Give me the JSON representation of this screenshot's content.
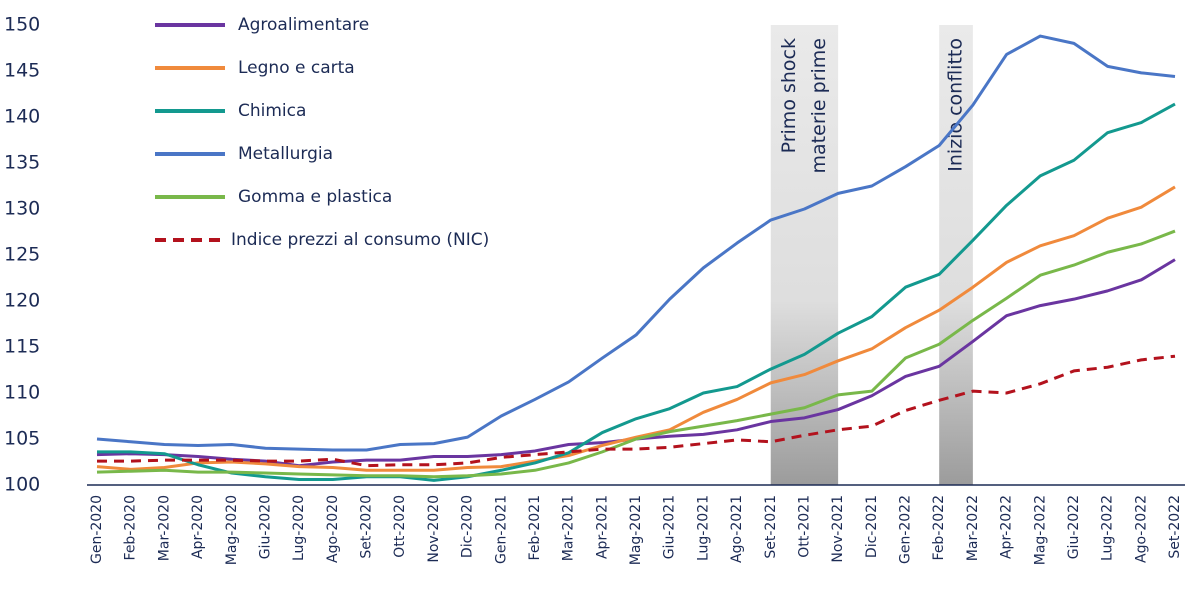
{
  "chart_data": {
    "type": "line",
    "categories": [
      "Gen-2020",
      "Feb-2020",
      "Mar-2020",
      "Apr-2020",
      "Mag-2020",
      "Giu-2020",
      "Lug-2020",
      "Ago-2020",
      "Set-2020",
      "Ott-2020",
      "Nov-2020",
      "Dic-2020",
      "Gen-2021",
      "Feb-2021",
      "Mar-2021",
      "Apr-2021",
      "Mag-2021",
      "Giu-2021",
      "Lug-2021",
      "Ago-2021",
      "Set-2021",
      "Ott-2021",
      "Nov-2021",
      "Dic-2021",
      "Gen-2022",
      "Feb-2022",
      "Mar-2022",
      "Apr-2022",
      "Mag-2022",
      "Giu-2022",
      "Lug-2022",
      "Ago-2022",
      "Set-2022"
    ],
    "series": [
      {
        "name": "Agroalimentare",
        "color": "#6a35a0",
        "values": [
          103.3,
          103.4,
          103.3,
          103.1,
          102.8,
          102.6,
          102.1,
          102.5,
          102.7,
          102.7,
          103.1,
          103.1,
          103.3,
          103.7,
          104.4,
          104.6,
          105.0,
          105.3,
          105.5,
          106.0,
          106.9,
          107.3,
          108.2,
          109.7,
          111.8,
          112.9,
          115.6,
          118.4,
          119.5,
          120.2,
          121.1,
          122.3,
          124.5
        ]
      },
      {
        "name": "Legno e carta",
        "color": "#f08a3c",
        "values": [
          102.0,
          101.7,
          101.9,
          102.4,
          102.5,
          102.3,
          102.0,
          101.9,
          101.6,
          101.6,
          101.6,
          101.9,
          102.0,
          102.6,
          103.2,
          104.3,
          105.2,
          106.0,
          107.9,
          109.3,
          111.1,
          112.0,
          113.5,
          114.8,
          117.1,
          119.0,
          121.5,
          124.2,
          126.0,
          127.1,
          129.0,
          130.2,
          132.4
        ]
      },
      {
        "name": "Chimica",
        "color": "#13998f",
        "values": [
          103.6,
          103.6,
          103.4,
          102.2,
          101.3,
          100.9,
          100.6,
          100.6,
          100.9,
          100.9,
          100.5,
          100.9,
          101.6,
          102.4,
          103.5,
          105.7,
          107.2,
          108.3,
          110.0,
          110.7,
          112.6,
          114.2,
          116.5,
          118.3,
          121.5,
          122.9,
          126.6,
          130.4,
          133.6,
          135.3,
          138.3,
          139.4,
          141.4
        ]
      },
      {
        "name": "Metallurgia",
        "color": "#4a76c6",
        "values": [
          105.0,
          104.7,
          104.4,
          104.3,
          104.4,
          104.0,
          103.9,
          103.8,
          103.8,
          104.4,
          104.5,
          105.2,
          107.5,
          109.3,
          111.2,
          113.8,
          116.3,
          120.2,
          123.6,
          126.3,
          128.8,
          130.0,
          131.7,
          132.5,
          134.6,
          136.9,
          141.3,
          146.8,
          148.8,
          148.0,
          145.5,
          144.8,
          144.4
        ]
      },
      {
        "name": "Gomma e plastica",
        "color": "#79b84a",
        "values": [
          101.4,
          101.5,
          101.6,
          101.4,
          101.4,
          101.3,
          101.2,
          101.1,
          101.0,
          101.0,
          100.9,
          101.0,
          101.2,
          101.6,
          102.4,
          103.6,
          105.0,
          105.8,
          106.4,
          107.0,
          107.7,
          108.4,
          109.8,
          110.2,
          113.8,
          115.3,
          117.9,
          120.3,
          122.8,
          123.9,
          125.3,
          126.2,
          127.6
        ]
      },
      {
        "name": "Indice prezzi al consumo (NIC)",
        "color": "#b3121d",
        "dash": true,
        "values": [
          102.6,
          102.6,
          102.7,
          102.7,
          102.7,
          102.6,
          102.6,
          102.8,
          102.1,
          102.2,
          102.2,
          102.4,
          103.0,
          103.3,
          103.6,
          103.9,
          103.9,
          104.1,
          104.5,
          104.9,
          104.7,
          105.4,
          106.0,
          106.4,
          108.1,
          109.2,
          110.2,
          110.0,
          111.0,
          112.4,
          112.8,
          113.6,
          114.0
        ]
      }
    ],
    "ylim": [
      100,
      150
    ],
    "yticks": [
      100,
      105,
      110,
      115,
      120,
      125,
      130,
      135,
      140,
      145,
      150
    ],
    "legend": "top-left",
    "annotations": [
      {
        "lines": [
          "Primo shock",
          "materie prime"
        ],
        "start": "Set-2021",
        "end": "Nov-2021"
      },
      {
        "lines": [
          "Inizio conflitto"
        ],
        "start": "Feb-2022",
        "end": "Mar-2022"
      }
    ]
  }
}
